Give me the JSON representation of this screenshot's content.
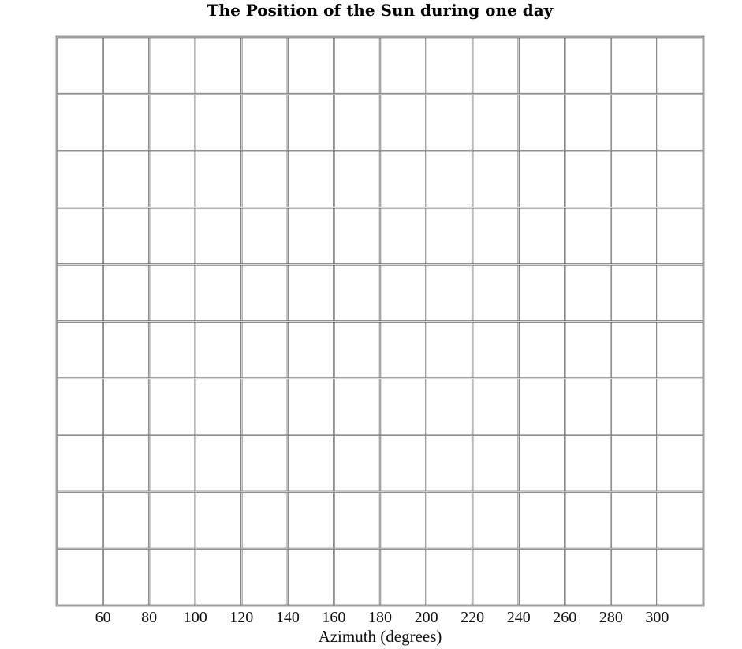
{
  "chart_data": {
    "type": "scatter",
    "title": "The Position of the Sun during one day",
    "xlabel": "Azimuth (degrees)",
    "ylabel": "",
    "x_ticks": [
      60,
      80,
      100,
      120,
      140,
      160,
      180,
      200,
      220,
      240,
      260,
      280,
      300
    ],
    "xlim": [
      40,
      320
    ],
    "grid": true,
    "y_gridlines": 11,
    "series": []
  }
}
